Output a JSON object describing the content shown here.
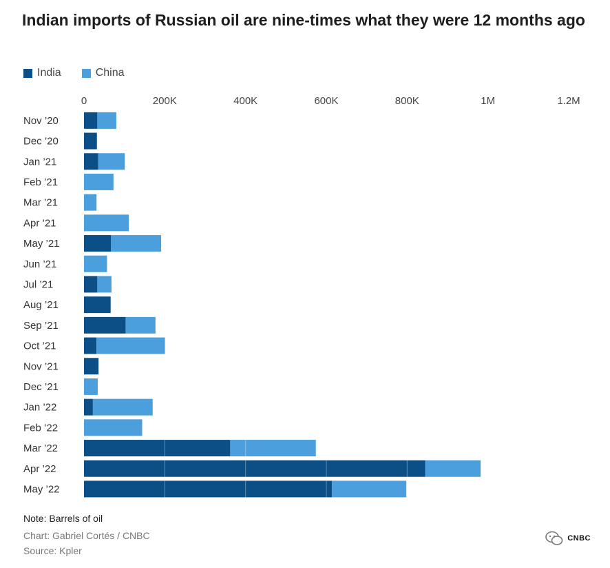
{
  "title": "Indian imports of Russian oil are nine-times what they were 12 months ago",
  "legend": [
    {
      "name": "India",
      "color": "#0b4f86"
    },
    {
      "name": "China",
      "color": "#4b9fdc"
    }
  ],
  "footer": {
    "note": "Note: Barrels of oil",
    "credit": "Chart: Gabriel Cortés / CNBC",
    "source": "Source: Kpler"
  },
  "watermark": {
    "logo_text": "CNBC",
    "icon": "wechat-icon"
  },
  "chart_data": {
    "type": "bar",
    "orientation": "horizontal",
    "stacked": true,
    "categories": [
      "Nov ’20",
      "Dec ’20",
      "Jan ’21",
      "Feb ’21",
      "Mar ’21",
      "Apr ’21",
      "May ’21",
      "Jun ’21",
      "Jul ’21",
      "Aug ’21",
      "Sep ’21",
      "Oct ’21",
      "Nov ’21",
      "Dec ’21",
      "Jan ’22",
      "Feb ’22",
      "Mar ’22",
      "Apr ’22",
      "May ’22"
    ],
    "series": [
      {
        "name": "India",
        "color": "#0b4f86",
        "values": [
          33000,
          32000,
          35000,
          0,
          0,
          0,
          67000,
          0,
          33000,
          66000,
          103000,
          31000,
          36000,
          0,
          22000,
          0,
          362000,
          845000,
          614000
        ]
      },
      {
        "name": "China",
        "color": "#4b9fdc",
        "values": [
          47000,
          0,
          66000,
          73000,
          31000,
          111000,
          124000,
          57000,
          35000,
          0,
          74000,
          170000,
          0,
          34000,
          148000,
          144000,
          212000,
          137000,
          184000
        ]
      }
    ],
    "xticks": [
      0,
      200000,
      400000,
      600000,
      800000,
      1000000,
      1200000
    ],
    "xtick_labels": [
      "0",
      "200K",
      "400K",
      "600K",
      "800K",
      "1M",
      "1.2M"
    ],
    "xlim": [
      0,
      1200000
    ],
    "grid": true,
    "note": "Note: Barrels of oil"
  }
}
